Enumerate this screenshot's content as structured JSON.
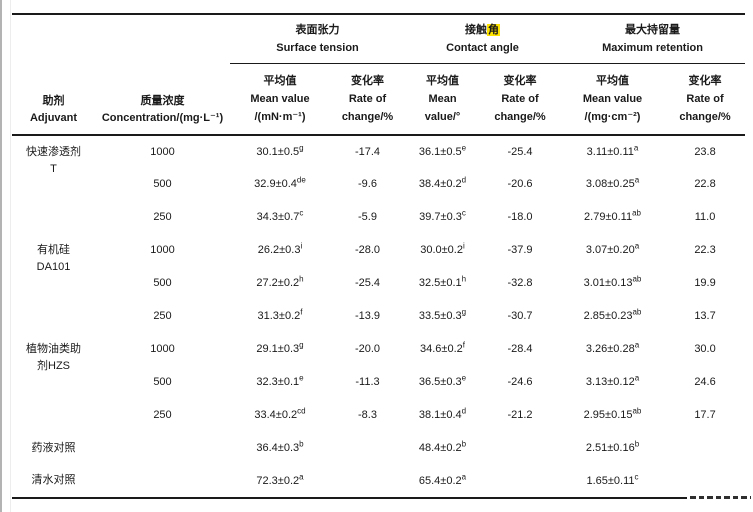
{
  "colors": {
    "highlight": "#ffe400",
    "text": "#1a1a1a",
    "rule": "#1a1a1a",
    "page_edge": "#b3b3b3"
  },
  "header": {
    "adjuvant": {
      "zh": "助剂",
      "en": "Adjuvant"
    },
    "concentration": {
      "zh": "质量浓度",
      "en": "Concentration/(mg·L⁻¹)"
    },
    "groups": [
      {
        "zh": "表面张力",
        "en": "Surface tension",
        "mean_lines": [
          "平均值",
          "Mean value",
          "/(mN·m⁻¹)"
        ],
        "rate_lines": [
          "变化率",
          "Rate of",
          "change/%"
        ]
      },
      {
        "zh_prefix": "接触",
        "zh_highlight": "角",
        "en": "Contact angle",
        "mean_lines": [
          "平均值",
          "Mean",
          "value/°"
        ],
        "rate_lines": [
          "变化率",
          "Rate of",
          "change/%"
        ]
      },
      {
        "zh": "最大持留量",
        "en": "Maximum retention",
        "mean_lines": [
          "平均值",
          "Mean value",
          "/(mg·cm⁻²)"
        ],
        "rate_lines": [
          "变化率",
          "Rate of",
          "change/%"
        ]
      }
    ]
  },
  "body": [
    {
      "label": [
        "快速渗透剂",
        "T"
      ],
      "rows": [
        {
          "conc": "1000",
          "st": [
            "30.1±0.5",
            "g"
          ],
          "st_rate": "-17.4",
          "ca": [
            "36.1±0.5",
            "e"
          ],
          "ca_rate": "-25.4",
          "mr": [
            "3.11±0.11",
            "a"
          ],
          "mr_rate": "23.8"
        },
        {
          "conc": "500",
          "st": [
            "32.9±0.4",
            "de"
          ],
          "st_rate": "-9.6",
          "ca": [
            "38.4±0.2",
            "d"
          ],
          "ca_rate": "-20.6",
          "mr": [
            "3.08±0.25",
            "a"
          ],
          "mr_rate": "22.8"
        },
        {
          "conc": "250",
          "st": [
            "34.3±0.7",
            "c"
          ],
          "st_rate": "-5.9",
          "ca": [
            "39.7±0.3",
            "c"
          ],
          "ca_rate": "-18.0",
          "mr": [
            "2.79±0.11",
            "ab"
          ],
          "mr_rate": "11.0"
        }
      ]
    },
    {
      "label": [
        "有机硅",
        "DA101"
      ],
      "rows": [
        {
          "conc": "1000",
          "st": [
            "26.2±0.3",
            "i"
          ],
          "st_rate": "-28.0",
          "ca": [
            "30.0±0.2",
            "i"
          ],
          "ca_rate": "-37.9",
          "mr": [
            "3.07±0.20",
            "a"
          ],
          "mr_rate": "22.3"
        },
        {
          "conc": "500",
          "st": [
            "27.2±0.2",
            "h"
          ],
          "st_rate": "-25.4",
          "ca": [
            "32.5±0.1",
            "h"
          ],
          "ca_rate": "-32.8",
          "mr": [
            "3.01±0.13",
            "ab"
          ],
          "mr_rate": "19.9"
        },
        {
          "conc": "250",
          "st": [
            "31.3±0.2",
            "f"
          ],
          "st_rate": "-13.9",
          "ca": [
            "33.5±0.3",
            "g"
          ],
          "ca_rate": "-30.7",
          "mr": [
            "2.85±0.23",
            "ab"
          ],
          "mr_rate": "13.7"
        }
      ]
    },
    {
      "label": [
        "植物油类助",
        "剂HZS"
      ],
      "rows": [
        {
          "conc": "1000",
          "st": [
            "29.1±0.3",
            "g"
          ],
          "st_rate": "-20.0",
          "ca": [
            "34.6±0.2",
            "f"
          ],
          "ca_rate": "-28.4",
          "mr": [
            "3.26±0.28",
            "a"
          ],
          "mr_rate": "30.0"
        },
        {
          "conc": "500",
          "st": [
            "32.3±0.1",
            "e"
          ],
          "st_rate": "-11.3",
          "ca": [
            "36.5±0.3",
            "e"
          ],
          "ca_rate": "-24.6",
          "mr": [
            "3.13±0.12",
            "a"
          ],
          "mr_rate": "24.6"
        },
        {
          "conc": "250",
          "st": [
            "33.4±0.2",
            "cd"
          ],
          "st_rate": "-8.3",
          "ca": [
            "38.1±0.4",
            "d"
          ],
          "ca_rate": "-21.2",
          "mr": [
            "2.95±0.15",
            "ab"
          ],
          "mr_rate": "17.7"
        }
      ]
    },
    {
      "label": [
        "药液对照"
      ],
      "rows": [
        {
          "conc": "",
          "st": [
            "36.4±0.3",
            "b"
          ],
          "st_rate": "",
          "ca": [
            "48.4±0.2",
            "b"
          ],
          "ca_rate": "",
          "mr": [
            "2.51±0.16",
            "b"
          ],
          "mr_rate": ""
        }
      ]
    },
    {
      "label": [
        "清水对照"
      ],
      "rows": [
        {
          "conc": "",
          "st": [
            "72.3±0.2",
            "a"
          ],
          "st_rate": "",
          "ca": [
            "65.4±0.2",
            "a"
          ],
          "ca_rate": "",
          "mr": [
            "1.65±0.11",
            "c"
          ],
          "mr_rate": ""
        }
      ]
    }
  ]
}
